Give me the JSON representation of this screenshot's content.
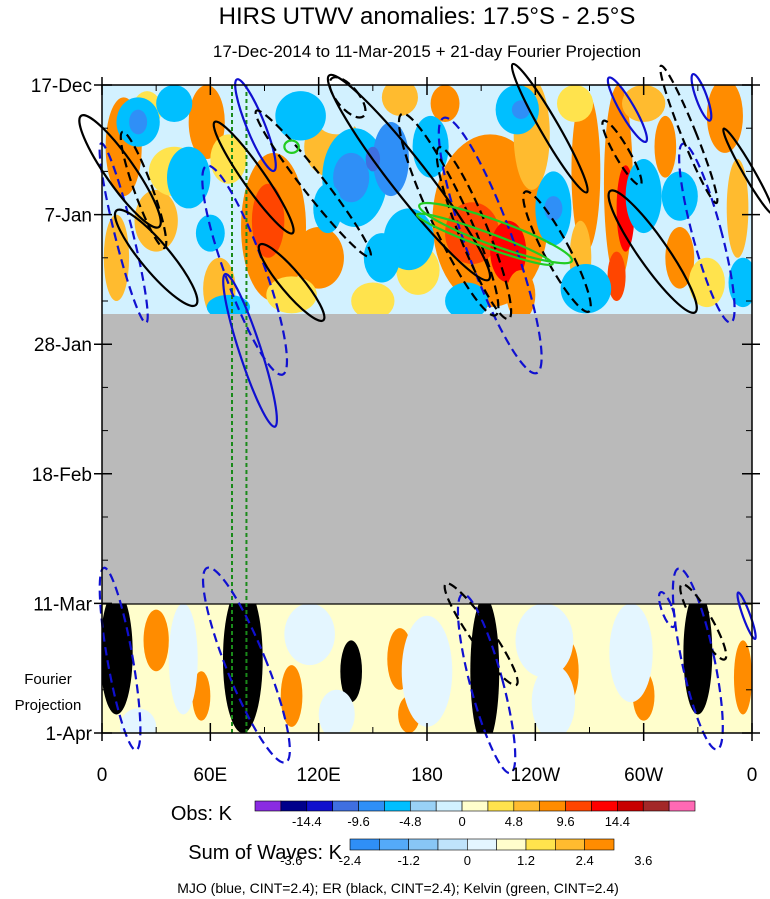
{
  "chart_data": {
    "type": "heatmap",
    "title": "HIRS UTWV anomalies: 17.5°S - 2.5°S",
    "subtitle": "17-Dec-2014 to 11-Mar-2015 + 21-day Fourier Projection",
    "x_axis": {
      "label": "",
      "ticks": [
        "0",
        "60E",
        "120E",
        "180",
        "120W",
        "60W",
        "0"
      ],
      "tick_values_deg_east": [
        0,
        60,
        120,
        180,
        240,
        300,
        360
      ],
      "range_deg_east": [
        0,
        360
      ]
    },
    "y_axis": {
      "label": "",
      "ticks": [
        "17-Dec",
        "7-Jan",
        "28-Jan",
        "18-Feb",
        "11-Mar",
        "1-Apr"
      ],
      "tick_values_day": [
        0,
        21,
        42,
        63,
        84,
        105
      ],
      "range_day": [
        0,
        105
      ],
      "projection_label_line1": "Fourier",
      "projection_label_line2": "Projection"
    },
    "observed_data_end_day": 37,
    "projection_start_day": 84,
    "missing_data_color": "#bababa",
    "mjo_reference_lines_deg_east": [
      72,
      80
    ],
    "obs_colorbar": {
      "label": "Obs: K",
      "tick_labels": [
        "-14.4",
        "-9.6",
        "-4.8",
        "0",
        "4.8",
        "9.6",
        "14.4"
      ],
      "colors": [
        "#8a2be2",
        "#00008b",
        "#1010cd",
        "#3f6fe0",
        "#2f8ff7",
        "#00bfff",
        "#99d1f6",
        "#d2f1ff",
        "#fffecc",
        "#ffe34d",
        "#ffbb2f",
        "#ff8c00",
        "#ff4500",
        "#ff0000",
        "#c80000",
        "#a32828",
        "#ff69b4"
      ]
    },
    "waves_colorbar": {
      "label": "Sum of Waves: K",
      "tick_labels": [
        "-3.6",
        "-2.4",
        "-1.2",
        "0",
        "1.2",
        "2.4",
        "3.6"
      ],
      "colors": [
        "#2f8ff7",
        "#54aaf9",
        "#88c6f5",
        "#bfe3fb",
        "#e4f6ff",
        "#fffecc",
        "#ffe34d",
        "#ffbb2f",
        "#ff8c00"
      ]
    },
    "legend_text": "MJO (blue, CINT=2.4); ER (black, CINT=2.4); Kelvin (green, CINT=2.4)",
    "series": [
      {
        "name": "MJO",
        "color": "#1010d0"
      },
      {
        "name": "ER",
        "color": "#000000"
      },
      {
        "name": "Kelvin",
        "color": "#22cc22"
      }
    ],
    "wave_contours": [
      {
        "series": "MJO",
        "sign": "pos",
        "lon": 85,
        "day": 6.5,
        "rlon": 5,
        "rday": 8,
        "rot": -22
      },
      {
        "series": "MJO",
        "sign": "pos",
        "lon": 82,
        "day": 43,
        "rlon": 6,
        "rday": 13,
        "rot": -18
      },
      {
        "series": "MJO",
        "sign": "pos",
        "lon": 291,
        "day": 4,
        "rlon": 4,
        "rday": 6,
        "rot": -30
      },
      {
        "series": "MJO",
        "sign": "pos",
        "lon": 332,
        "day": 2,
        "rlon": 3,
        "rday": 4,
        "rot": -20
      },
      {
        "series": "MJO",
        "sign": "pos",
        "lon": 357,
        "day": 86,
        "rlon": 2,
        "rday": 4,
        "rot": -20
      },
      {
        "series": "MJO",
        "sign": "neg",
        "lon": 12,
        "day": 24,
        "rlon": 5,
        "rday": 15,
        "rot": -14
      },
      {
        "series": "MJO",
        "sign": "neg",
        "lon": 79,
        "day": 30,
        "rlon": 11,
        "rday": 18,
        "rot": -20
      },
      {
        "series": "MJO",
        "sign": "neg",
        "lon": 215,
        "day": 26,
        "rlon": 13,
        "rday": 22,
        "rot": -20
      },
      {
        "series": "MJO",
        "sign": "neg",
        "lon": 335,
        "day": 24,
        "rlon": 8,
        "rday": 15,
        "rot": -15
      },
      {
        "series": "MJO",
        "sign": "neg",
        "lon": 10,
        "day": 93,
        "rlon": 7,
        "rday": 15,
        "rot": -10
      },
      {
        "series": "MJO",
        "sign": "neg",
        "lon": 80,
        "day": 94,
        "rlon": 11,
        "rday": 17,
        "rot": -22
      },
      {
        "series": "MJO",
        "sign": "neg",
        "lon": 213,
        "day": 97,
        "rlon": 9,
        "rday": 15,
        "rot": -15
      },
      {
        "series": "MJO",
        "sign": "neg",
        "lon": 330,
        "day": 93,
        "rlon": 9,
        "rday": 15,
        "rot": -12
      },
      {
        "series": "MJO",
        "sign": "neg",
        "lon": 313,
        "day": 85,
        "rlon": 3,
        "rday": 3,
        "rot": -20
      },
      {
        "series": "ER",
        "sign": "pos",
        "lon": 10,
        "day": 14,
        "rlon": 8,
        "rday": 11,
        "rot": -35
      },
      {
        "series": "ER",
        "sign": "pos",
        "lon": 30,
        "day": 28,
        "rlon": 8,
        "rday": 10,
        "rot": -40
      },
      {
        "series": "ER",
        "sign": "pos",
        "lon": 84,
        "day": 15,
        "rlon": 6,
        "rday": 11,
        "rot": -35
      },
      {
        "series": "ER",
        "sign": "pos",
        "lon": 105,
        "day": 32,
        "rlon": 6,
        "rday": 8,
        "rot": -40
      },
      {
        "series": "ER",
        "sign": "pos",
        "lon": 170,
        "day": 15,
        "rlon": 10,
        "rday": 21,
        "rot": -38
      },
      {
        "series": "ER",
        "sign": "pos",
        "lon": 248,
        "day": 7,
        "rlon": 5,
        "rday": 12,
        "rot": -30
      },
      {
        "series": "ER",
        "sign": "pos",
        "lon": 305,
        "day": 27,
        "rlon": 8,
        "rday": 12,
        "rot": -35
      },
      {
        "series": "ER",
        "sign": "pos",
        "lon": 358,
        "day": 14,
        "rlon": 3,
        "rday": 8,
        "rot": -30
      },
      {
        "series": "ER",
        "sign": "neg",
        "lon": 23,
        "day": 17,
        "rlon": 5,
        "rday": 10,
        "rot": -20
      },
      {
        "series": "ER",
        "sign": "neg",
        "lon": 117,
        "day": 16,
        "rlon": 6,
        "rday": 15,
        "rot": -38
      },
      {
        "series": "ER",
        "sign": "neg",
        "lon": 192,
        "day": 21,
        "rlon": 10,
        "rday": 18,
        "rot": -25
      },
      {
        "series": "ER",
        "sign": "neg",
        "lon": 206,
        "day": 24,
        "rlon": 8,
        "rday": 15,
        "rot": -22
      },
      {
        "series": "ER",
        "sign": "neg",
        "lon": 252,
        "day": 27,
        "rlon": 7,
        "rday": 11,
        "rot": -28
      },
      {
        "series": "ER",
        "sign": "neg",
        "lon": 288,
        "day": 11,
        "rlon": 4,
        "rday": 6,
        "rot": -30
      },
      {
        "series": "ER",
        "sign": "neg",
        "lon": 325,
        "day": 8,
        "rlon": 4,
        "rday": 12,
        "rot": -22
      },
      {
        "series": "ER",
        "sign": "neg",
        "lon": 136,
        "day": 2,
        "rlon": 6,
        "rday": 4,
        "rot": -40
      },
      {
        "series": "ER",
        "sign": "neg",
        "lon": 210,
        "day": 89,
        "rlon": 6,
        "rday": 10,
        "rot": -35
      },
      {
        "series": "ER",
        "sign": "neg",
        "lon": 333,
        "day": 87,
        "rlon": 5,
        "rday": 7,
        "rot": -30
      },
      {
        "series": "Kelvin",
        "sign": "pos",
        "lon": 218,
        "day": 24,
        "rlon": 45,
        "rday": 2,
        "rot": 20
      },
      {
        "series": "Kelvin",
        "sign": "pos",
        "lon": 212,
        "day": 25,
        "rlon": 40,
        "rday": 1.2,
        "rot": 20
      },
      {
        "series": "Kelvin",
        "sign": "pos",
        "lon": 105,
        "day": 10,
        "rlon": 4,
        "rday": 1,
        "rot": 5
      }
    ],
    "obs_patches": [
      {
        "lon": 12,
        "day": 10,
        "rlon": 10,
        "rday": 8,
        "level": 11
      },
      {
        "lon": 8,
        "day": 28,
        "rlon": 7,
        "rday": 7,
        "level": 10
      },
      {
        "lon": 30,
        "day": 22,
        "rlon": 12,
        "rday": 5,
        "level": 10
      },
      {
        "lon": 58,
        "day": 6,
        "rlon": 10,
        "rday": 6,
        "level": 11
      },
      {
        "lon": 95,
        "day": 23,
        "rlon": 18,
        "rday": 12,
        "level": 11
      },
      {
        "lon": 92,
        "day": 22,
        "rlon": 9,
        "rday": 6,
        "level": 12
      },
      {
        "lon": 65,
        "day": 33,
        "rlon": 9,
        "rday": 5,
        "level": 10
      },
      {
        "lon": 128,
        "day": 10,
        "rlon": 16,
        "rday": 5,
        "level": 10
      },
      {
        "lon": 120,
        "day": 28,
        "rlon": 14,
        "rday": 5,
        "level": 11
      },
      {
        "lon": 165,
        "day": 2,
        "rlon": 10,
        "rday": 3,
        "level": 10
      },
      {
        "lon": 190,
        "day": 3,
        "rlon": 8,
        "rday": 3,
        "level": 11
      },
      {
        "lon": 215,
        "day": 22,
        "rlon": 32,
        "rday": 14,
        "level": 11
      },
      {
        "lon": 205,
        "day": 24,
        "rlon": 15,
        "rday": 5,
        "level": 12
      },
      {
        "lon": 225,
        "day": 27,
        "rlon": 10,
        "rday": 5,
        "level": 13
      },
      {
        "lon": 238,
        "day": 8,
        "rlon": 10,
        "rday": 9,
        "level": 10
      },
      {
        "lon": 232,
        "day": 34,
        "rlon": 8,
        "rday": 4,
        "level": 11
      },
      {
        "lon": 268,
        "day": 14,
        "rlon": 8,
        "rday": 13,
        "level": 11
      },
      {
        "lon": 286,
        "day": 16,
        "rlon": 8,
        "rday": 16,
        "level": 11
      },
      {
        "lon": 290,
        "day": 20,
        "rlon": 5,
        "rday": 7,
        "level": 13
      },
      {
        "lon": 285,
        "day": 31,
        "rlon": 5,
        "rday": 4,
        "level": 12
      },
      {
        "lon": 265,
        "day": 28,
        "rlon": 6,
        "rday": 6,
        "level": 10
      },
      {
        "lon": 312,
        "day": 10,
        "rlon": 6,
        "rday": 5,
        "level": 11
      },
      {
        "lon": 320,
        "day": 28,
        "rlon": 8,
        "rday": 5,
        "level": 11
      },
      {
        "lon": 345,
        "day": 5,
        "rlon": 10,
        "rday": 6,
        "level": 11
      },
      {
        "lon": 352,
        "day": 20,
        "rlon": 6,
        "rday": 8,
        "level": 10
      },
      {
        "lon": 40,
        "day": 14,
        "rlon": 14,
        "rday": 4,
        "level": 9
      },
      {
        "lon": 175,
        "day": 30,
        "rlon": 12,
        "rday": 4,
        "level": 9
      },
      {
        "lon": 300,
        "day": 3,
        "rlon": 12,
        "rday": 3,
        "level": 10
      },
      {
        "lon": 70,
        "day": 12,
        "rlon": 10,
        "rday": 4,
        "level": 9
      },
      {
        "lon": 150,
        "day": 35,
        "rlon": 12,
        "rday": 3,
        "level": 9
      },
      {
        "lon": 262,
        "day": 3,
        "rlon": 10,
        "rday": 3,
        "level": 9
      },
      {
        "lon": 105,
        "day": 34,
        "rlon": 14,
        "rday": 3,
        "level": 9
      },
      {
        "lon": 335,
        "day": 32,
        "rlon": 10,
        "rday": 4,
        "level": 9
      },
      {
        "lon": 25,
        "day": 4,
        "rlon": 8,
        "rday": 3,
        "level": 9
      },
      {
        "lon": 130,
        "day": 5,
        "rlon": 12,
        "rday": 3,
        "level": 7
      },
      {
        "lon": 40,
        "day": 3,
        "rlon": 10,
        "rday": 3,
        "level": 5
      },
      {
        "lon": 48,
        "day": 15,
        "rlon": 12,
        "rday": 5,
        "level": 5
      },
      {
        "lon": 110,
        "day": 5,
        "rlon": 14,
        "rday": 4,
        "level": 5
      },
      {
        "lon": 140,
        "day": 15,
        "rlon": 18,
        "rday": 8,
        "level": 5
      },
      {
        "lon": 138,
        "day": 15,
        "rlon": 10,
        "rday": 4,
        "level": 4
      },
      {
        "lon": 160,
        "day": 12,
        "rlon": 10,
        "rday": 6,
        "level": 4
      },
      {
        "lon": 170,
        "day": 25,
        "rlon": 14,
        "rday": 5,
        "level": 5
      },
      {
        "lon": 155,
        "day": 28,
        "rlon": 10,
        "rday": 4,
        "level": 5
      },
      {
        "lon": 182,
        "day": 10,
        "rlon": 10,
        "rday": 5,
        "level": 5
      },
      {
        "lon": 250,
        "day": 20,
        "rlon": 10,
        "rday": 6,
        "level": 5
      },
      {
        "lon": 230,
        "day": 4,
        "rlon": 12,
        "rday": 4,
        "level": 5
      },
      {
        "lon": 300,
        "day": 18,
        "rlon": 10,
        "rday": 6,
        "level": 5
      },
      {
        "lon": 320,
        "day": 18,
        "rlon": 10,
        "rday": 4,
        "level": 5
      },
      {
        "lon": 268,
        "day": 33,
        "rlon": 14,
        "rday": 4,
        "level": 5
      },
      {
        "lon": 20,
        "day": 6,
        "rlon": 12,
        "rday": 4,
        "level": 5
      },
      {
        "lon": 70,
        "day": 36,
        "rlon": 12,
        "rday": 2,
        "level": 5
      },
      {
        "lon": 202,
        "day": 35,
        "rlon": 12,
        "rday": 3,
        "level": 5
      },
      {
        "lon": 355,
        "day": 32,
        "rlon": 8,
        "rday": 4,
        "level": 5
      },
      {
        "lon": 125,
        "day": 20,
        "rlon": 8,
        "rday": 4,
        "level": 5
      },
      {
        "lon": 60,
        "day": 24,
        "rlon": 8,
        "rday": 3,
        "level": 5
      },
      {
        "lon": 150,
        "day": 12,
        "rlon": 4,
        "rday": 2,
        "level": 3
      },
      {
        "lon": 250,
        "day": 20,
        "rlon": 5,
        "rday": 2,
        "level": 4
      },
      {
        "lon": 20,
        "day": 6,
        "rlon": 5,
        "rday": 2,
        "level": 4
      },
      {
        "lon": 232,
        "day": 4,
        "rlon": 5,
        "rday": 1.5,
        "level": 4
      }
    ],
    "projection_patches": [
      {
        "lon": 8,
        "day": 92,
        "rlon": 9,
        "rday": 10,
        "level": 9
      },
      {
        "lon": 8,
        "day": 92,
        "rlon": 4,
        "rday": 4,
        "level": 10
      },
      {
        "lon": 78,
        "day": 93,
        "rlon": 11,
        "rday": 12,
        "level": 9
      },
      {
        "lon": 80,
        "day": 93,
        "rlon": 5,
        "rday": 5,
        "level": 10
      },
      {
        "lon": 138,
        "day": 95,
        "rlon": 6,
        "rday": 5,
        "level": 9
      },
      {
        "lon": 212,
        "day": 95,
        "rlon": 8,
        "rday": 12,
        "level": 9
      },
      {
        "lon": 213,
        "day": 95,
        "rlon": 4,
        "rday": 5,
        "level": 10
      },
      {
        "lon": 330,
        "day": 92,
        "rlon": 8,
        "rday": 10,
        "level": 9
      },
      {
        "lon": 332,
        "day": 92,
        "rlon": 4,
        "rday": 5,
        "level": 10
      },
      {
        "lon": 30,
        "day": 90,
        "rlon": 7,
        "rday": 5,
        "level": 8
      },
      {
        "lon": 55,
        "day": 99,
        "rlon": 5,
        "rday": 4,
        "level": 8
      },
      {
        "lon": 105,
        "day": 99,
        "rlon": 6,
        "rday": 5,
        "level": 8
      },
      {
        "lon": 165,
        "day": 93,
        "rlon": 7,
        "rday": 5,
        "level": 8
      },
      {
        "lon": 170,
        "day": 102,
        "rlon": 6,
        "rday": 3,
        "level": 8
      },
      {
        "lon": 258,
        "day": 95,
        "rlon": 6,
        "rday": 5,
        "level": 8
      },
      {
        "lon": 300,
        "day": 99,
        "rlon": 6,
        "rday": 4,
        "level": 8
      },
      {
        "lon": 355,
        "day": 96,
        "rlon": 5,
        "rday": 6,
        "level": 8
      },
      {
        "lon": 45,
        "day": 93,
        "rlon": 8,
        "rday": 9,
        "level": 4
      },
      {
        "lon": 115,
        "day": 89,
        "rlon": 14,
        "rday": 5,
        "level": 4
      },
      {
        "lon": 180,
        "day": 95,
        "rlon": 14,
        "rday": 9,
        "level": 4
      },
      {
        "lon": 245,
        "day": 90,
        "rlon": 16,
        "rday": 6,
        "level": 4
      },
      {
        "lon": 250,
        "day": 100,
        "rlon": 12,
        "rday": 6,
        "level": 4
      },
      {
        "lon": 293,
        "day": 92,
        "rlon": 12,
        "rday": 8,
        "level": 4
      },
      {
        "lon": 130,
        "day": 102,
        "rlon": 10,
        "rday": 4,
        "level": 4
      },
      {
        "lon": 20,
        "day": 104,
        "rlon": 10,
        "rday": 3,
        "level": 4
      }
    ]
  }
}
